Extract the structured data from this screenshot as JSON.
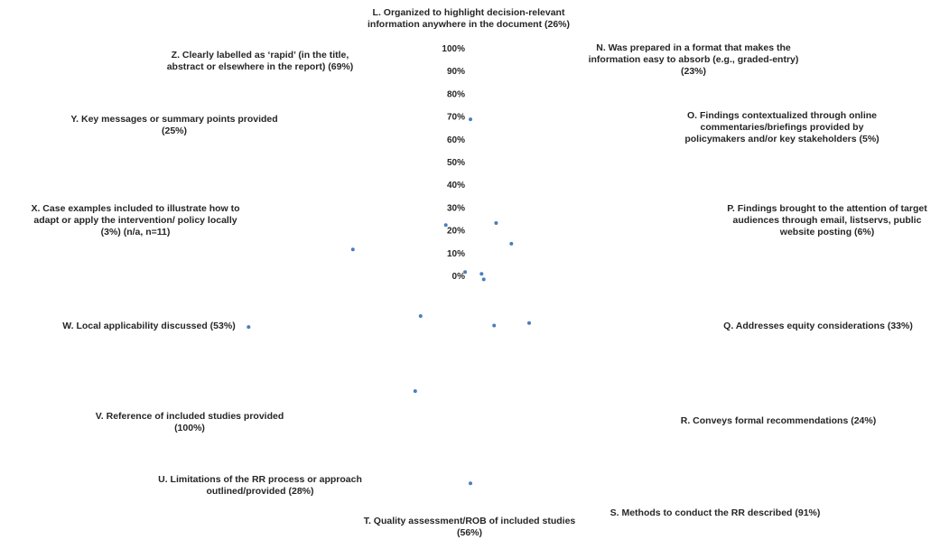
{
  "chart_data": {
    "type": "scatter",
    "subtype": "radar",
    "radial_ticks": [
      "0%",
      "10%",
      "20%",
      "30%",
      "40%",
      "50%",
      "60%",
      "70%",
      "80%",
      "90%",
      "100%"
    ],
    "rlim": [
      0,
      100
    ],
    "grid": false,
    "legend": "none",
    "marker_color": "#4a7ebb",
    "categories": [
      {
        "label_lines": [
          "L. Organized to highlight decision-relevant",
          "information anywhere in the document (26%)"
        ],
        "value": 26
      },
      {
        "label_lines": [
          "N. Was prepared in a format that makes the",
          "information easy to absorb (e.g., graded-entry)",
          "(23%)"
        ],
        "value": 23
      },
      {
        "label_lines": [
          "O. Findings contextualized through online",
          "commentaries/briefings provided by",
          "policymakers and/or key stakeholders (5%)"
        ],
        "value": 5
      },
      {
        "label_lines": [
          "P. Findings brought to the attention of target",
          "audiences through email, listservs, public",
          "website posting (6%)"
        ],
        "value": 6
      },
      {
        "label_lines": [
          "Q. Addresses equity considerations (33%)"
        ],
        "value": 33
      },
      {
        "label_lines": [
          "R. Conveys formal recommendations (24%)"
        ],
        "value": 24
      },
      {
        "label_lines": [
          "S. Methods to conduct the RR described (91%)"
        ],
        "value": 91
      },
      {
        "label_lines": [
          "T. Quality assessment/ROB of included studies",
          "(56%)"
        ],
        "value": 56
      },
      {
        "label_lines": [
          "U. Limitations of the RR process or approach",
          "outlined/provided (28%)"
        ],
        "value": 28
      },
      {
        "label_lines": [
          "V. Reference of included studies provided",
          "(100%)"
        ],
        "value": 100
      },
      {
        "label_lines": [
          "W. Local applicability discussed (53%)"
        ],
        "value": 53
      },
      {
        "label_lines": [
          "X. Case examples included to illustrate how to",
          "adapt or apply the intervention/ policy locally",
          "(3%) (n/a, n=11)"
        ],
        "value": 3
      },
      {
        "label_lines": [
          "Y. Key messages or summary points provided",
          "(25%)"
        ],
        "value": 25
      },
      {
        "label_lines": [
          "Z. Clearly labelled as ‘rapid’ (in the title,",
          "abstract or elsewhere in the report) (69%)"
        ],
        "value": 69
      }
    ]
  }
}
